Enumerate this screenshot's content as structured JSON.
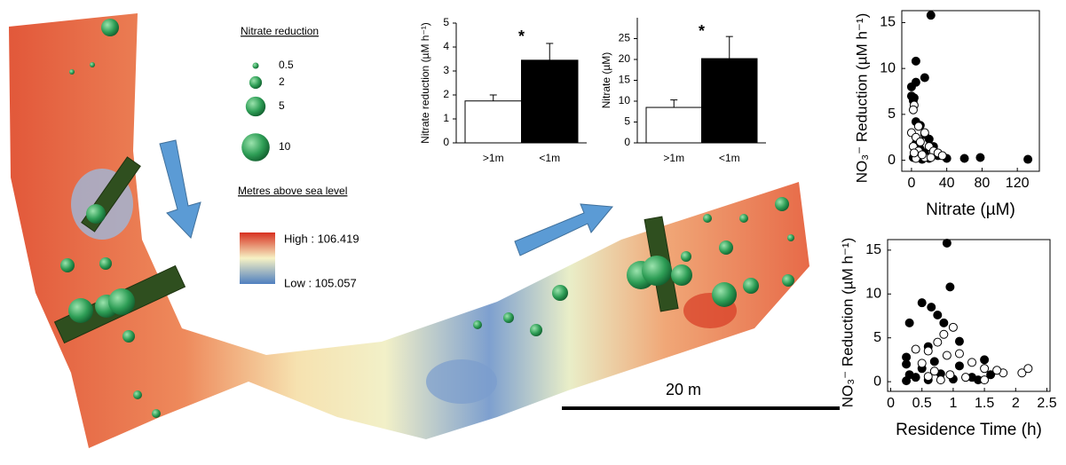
{
  "map": {
    "size_legend_title": "Nitrate reduction",
    "size_legend": [
      0.5,
      2,
      5,
      10
    ],
    "color_legend_title": "Metres above sea level",
    "high_label": "High : 106.419",
    "low_label": "Low : 105.057",
    "scale_bar": "20 m"
  },
  "chart_data": [
    {
      "type": "bar",
      "ylabel": "Nitrate reduction (µM h⁻¹)",
      "categories": [
        ">1m",
        "<1m"
      ],
      "values": [
        1.75,
        3.45
      ],
      "errors": [
        0.25,
        0.7
      ],
      "colors": [
        "#ffffff",
        "#000000"
      ],
      "ylim": [
        0,
        5
      ],
      "yticks": [
        0,
        1,
        2,
        3,
        4,
        5
      ],
      "annotation": "*"
    },
    {
      "type": "bar",
      "ylabel": "Nitrate (µM)",
      "categories": [
        ">1m",
        "<1m"
      ],
      "values": [
        8.5,
        20.2
      ],
      "errors": [
        1.8,
        5.3
      ],
      "colors": [
        "#ffffff",
        "#000000"
      ],
      "ylim": [
        0,
        30
      ],
      "yticks": [
        0,
        5,
        10,
        15,
        20,
        25
      ],
      "annotation": "*"
    },
    {
      "type": "scatter",
      "xlabel": "Nitrate (µM)",
      "ylabel": "NO₃⁻ Reduction (µM h⁻¹)",
      "xlim": [
        -11,
        145
      ],
      "xticks": [
        0,
        40,
        80,
        120
      ],
      "ylim": [
        -1.2,
        16.3
      ],
      "yticks": [
        0,
        5,
        10,
        15
      ],
      "series": [
        {
          "color": "#000000",
          "fill": "#000000",
          "x": [
            22,
            5,
            0,
            5,
            15,
            0,
            2,
            3,
            5,
            10,
            15,
            20,
            5,
            10,
            15,
            8,
            25,
            30,
            40,
            60,
            78,
            132,
            2,
            12,
            20
          ],
          "values": [
            15.8,
            10.8,
            8,
            8.5,
            9,
            7,
            6.5,
            6.8,
            4.2,
            3.8,
            2.8,
            2.3,
            1.8,
            1.2,
            0.8,
            0.5,
            1.5,
            0.5,
            0.2,
            0.2,
            0.3,
            0.1,
            0.3,
            0.1,
            0.2
          ]
        },
        {
          "color": "#000000",
          "fill": "#ffffff",
          "x": [
            3,
            2,
            8,
            15,
            0,
            5,
            10,
            2,
            8,
            20,
            25,
            30,
            15,
            5,
            35,
            3,
            22,
            12
          ],
          "values": [
            6,
            5.5,
            3.7,
            3,
            3,
            2.5,
            2,
            1.5,
            1,
            1.5,
            1,
            0.8,
            0.3,
            0.2,
            0.5,
            0.8,
            0.3,
            0.6
          ]
        }
      ]
    },
    {
      "type": "scatter",
      "xlabel": "Residence Time (h)",
      "ylabel": "NO₃⁻ Reduction (µM h⁻¹)",
      "xlim": [
        -0.05,
        2.55
      ],
      "xticks": [
        0,
        0.5,
        1,
        1.5,
        2,
        2.5
      ],
      "ylim": [
        -1.1,
        16.2
      ],
      "yticks": [
        0,
        5,
        10,
        15
      ],
      "series": [
        {
          "color": "#000000",
          "fill": "#000000",
          "x": [
            0.9,
            0.95,
            0.5,
            0.65,
            0.75,
            0.85,
            0.3,
            1.1,
            0.6,
            0.25,
            0.25,
            1.5,
            0.7,
            1.1,
            0.5,
            0.3,
            0.4,
            0.8,
            1.3,
            1.0,
            0.6,
            0.25,
            1.6,
            1.4
          ],
          "values": [
            15.8,
            10.8,
            9,
            8.5,
            7.6,
            6.7,
            6.7,
            4.6,
            4,
            2.8,
            2,
            2.5,
            2.3,
            1.8,
            1.5,
            0.8,
            0.5,
            0.9,
            0.5,
            0.3,
            0.2,
            0.1,
            0.8,
            0.2
          ]
        },
        {
          "color": "#000000",
          "fill": "#ffffff",
          "x": [
            1.0,
            0.85,
            0.75,
            0.4,
            0.6,
            0.9,
            1.1,
            1.3,
            1.5,
            1.8,
            2.1,
            2.2,
            0.5,
            0.7,
            0.95,
            1.2,
            1.5,
            0.8,
            1.7,
            0.6
          ],
          "values": [
            6.2,
            5.4,
            4.5,
            3.7,
            3.5,
            3.0,
            3.2,
            2.2,
            1.5,
            1.0,
            1.0,
            1.5,
            2.1,
            1.2,
            0.8,
            0.5,
            0.2,
            0.2,
            1.3,
            0.6
          ]
        }
      ]
    }
  ]
}
